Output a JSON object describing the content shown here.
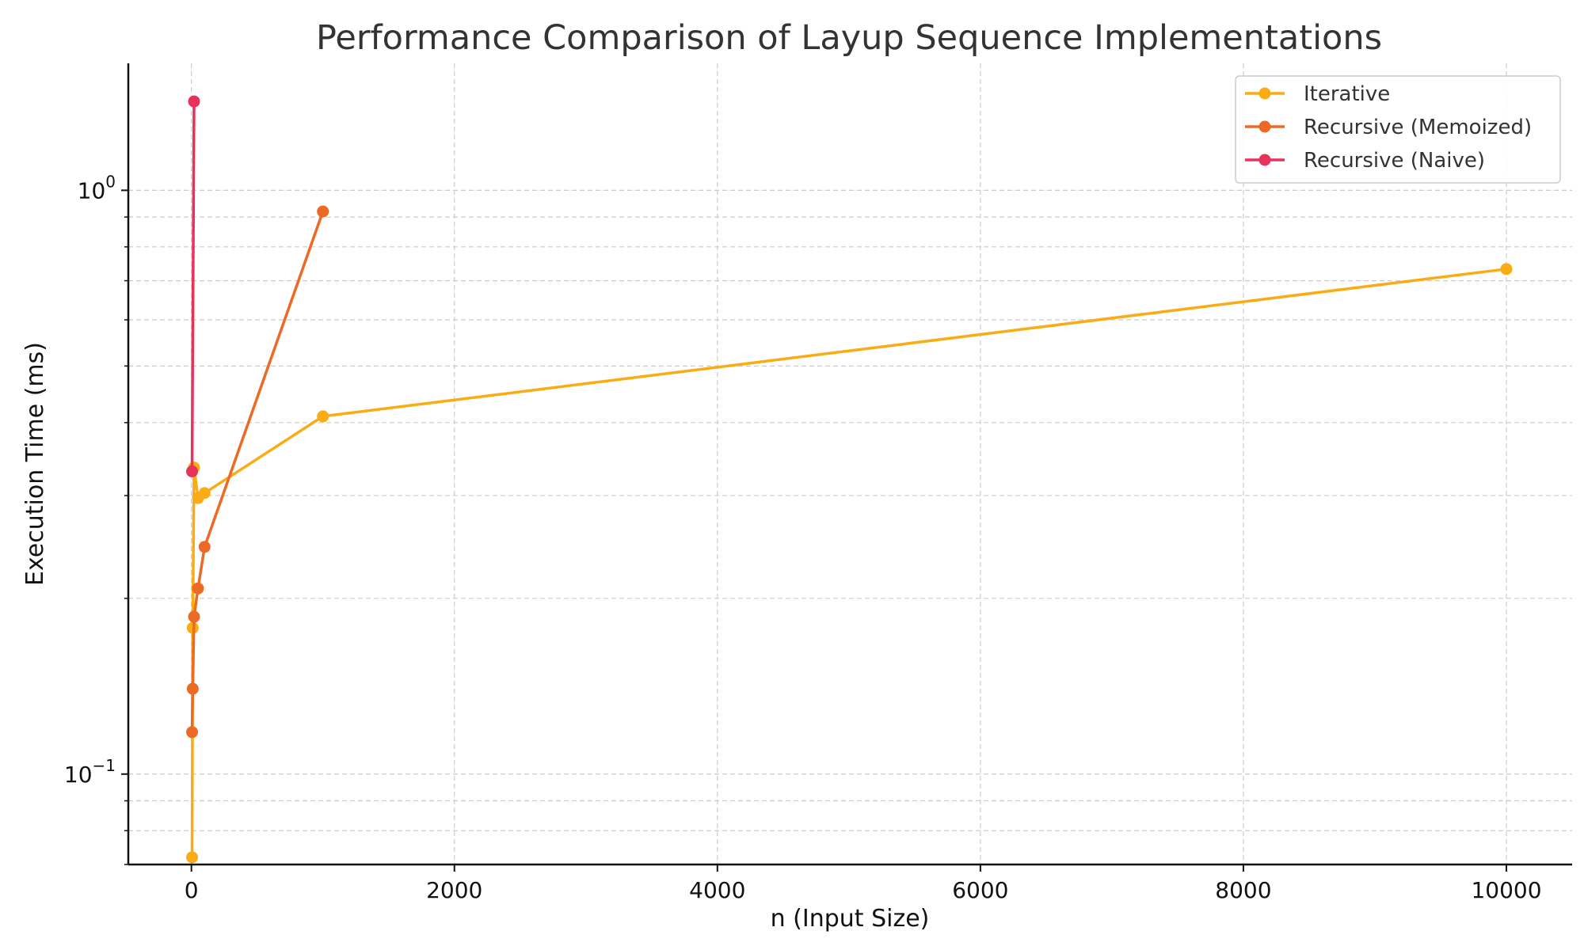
{
  "chart_data": {
    "type": "line",
    "title": "Performance Comparison of Layup Sequence Implementations",
    "xlabel": "n (Input Size)",
    "ylabel": "Execution Time (ms)",
    "xlim": [
      -480,
      10500
    ],
    "ylim": [
      0.07,
      1.65
    ],
    "yscale": "log",
    "grid": true,
    "legend_position": "top-right",
    "x_ticks": [
      0,
      2000,
      4000,
      6000,
      8000,
      10000
    ],
    "x_tick_labels": [
      "0",
      "2000",
      "4000",
      "6000",
      "8000",
      "10000"
    ],
    "y_major_ticks": [
      {
        "value": 1,
        "base": "10",
        "exp": "0"
      },
      {
        "value": 0.1,
        "base": "10",
        "exp": "−1"
      }
    ],
    "series": [
      {
        "name": "Iterative",
        "color": "#F9AC13",
        "x": [
          5,
          10,
          20,
          50,
          100,
          1000,
          10000
        ],
        "y": [
          0.072,
          0.178,
          0.335,
          0.297,
          0.303,
          0.41,
          0.733
        ]
      },
      {
        "name": "Recursive (Memoized)",
        "color": "#EC6A26",
        "x": [
          5,
          10,
          20,
          50,
          100,
          1000
        ],
        "y": [
          0.118,
          0.14,
          0.186,
          0.208,
          0.245,
          0.92
        ]
      },
      {
        "name": "Recursive (Naive)",
        "color": "#E8325A",
        "x": [
          5,
          20
        ],
        "y": [
          0.33,
          1.42
        ]
      }
    ]
  }
}
